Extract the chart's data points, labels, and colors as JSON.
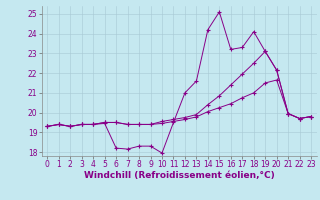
{
  "background_color": "#c5e8f0",
  "line_color": "#880088",
  "grid_color": "#b0c8d0",
  "xlabel": "Windchill (Refroidissement éolien,°C)",
  "xlabel_fontsize": 6.5,
  "tick_fontsize": 5.5,
  "ylim": [
    17.8,
    25.4
  ],
  "xlim": [
    -0.5,
    23.5
  ],
  "yticks": [
    18,
    19,
    20,
    21,
    22,
    23,
    24,
    25
  ],
  "xticks": [
    0,
    1,
    2,
    3,
    4,
    5,
    6,
    7,
    8,
    9,
    10,
    11,
    12,
    13,
    14,
    15,
    16,
    17,
    18,
    19,
    20,
    21,
    22,
    23
  ],
  "series": [
    [
      19.3,
      19.4,
      19.3,
      19.4,
      19.4,
      19.45,
      18.2,
      18.15,
      18.3,
      18.3,
      17.95,
      19.5,
      21.0,
      21.6,
      24.2,
      25.1,
      23.2,
      23.3,
      24.1,
      23.1,
      22.15,
      19.95,
      19.7,
      19.8
    ],
    [
      19.3,
      19.4,
      19.3,
      19.4,
      19.4,
      19.5,
      19.5,
      19.4,
      19.4,
      19.4,
      19.55,
      19.65,
      19.75,
      19.9,
      20.4,
      20.85,
      21.4,
      21.95,
      22.5,
      23.1,
      22.15,
      19.95,
      19.7,
      19.8
    ],
    [
      19.3,
      19.4,
      19.3,
      19.4,
      19.4,
      19.5,
      19.5,
      19.4,
      19.4,
      19.4,
      19.45,
      19.55,
      19.65,
      19.78,
      20.05,
      20.25,
      20.45,
      20.75,
      21.0,
      21.5,
      21.65,
      19.95,
      19.7,
      19.8
    ]
  ]
}
